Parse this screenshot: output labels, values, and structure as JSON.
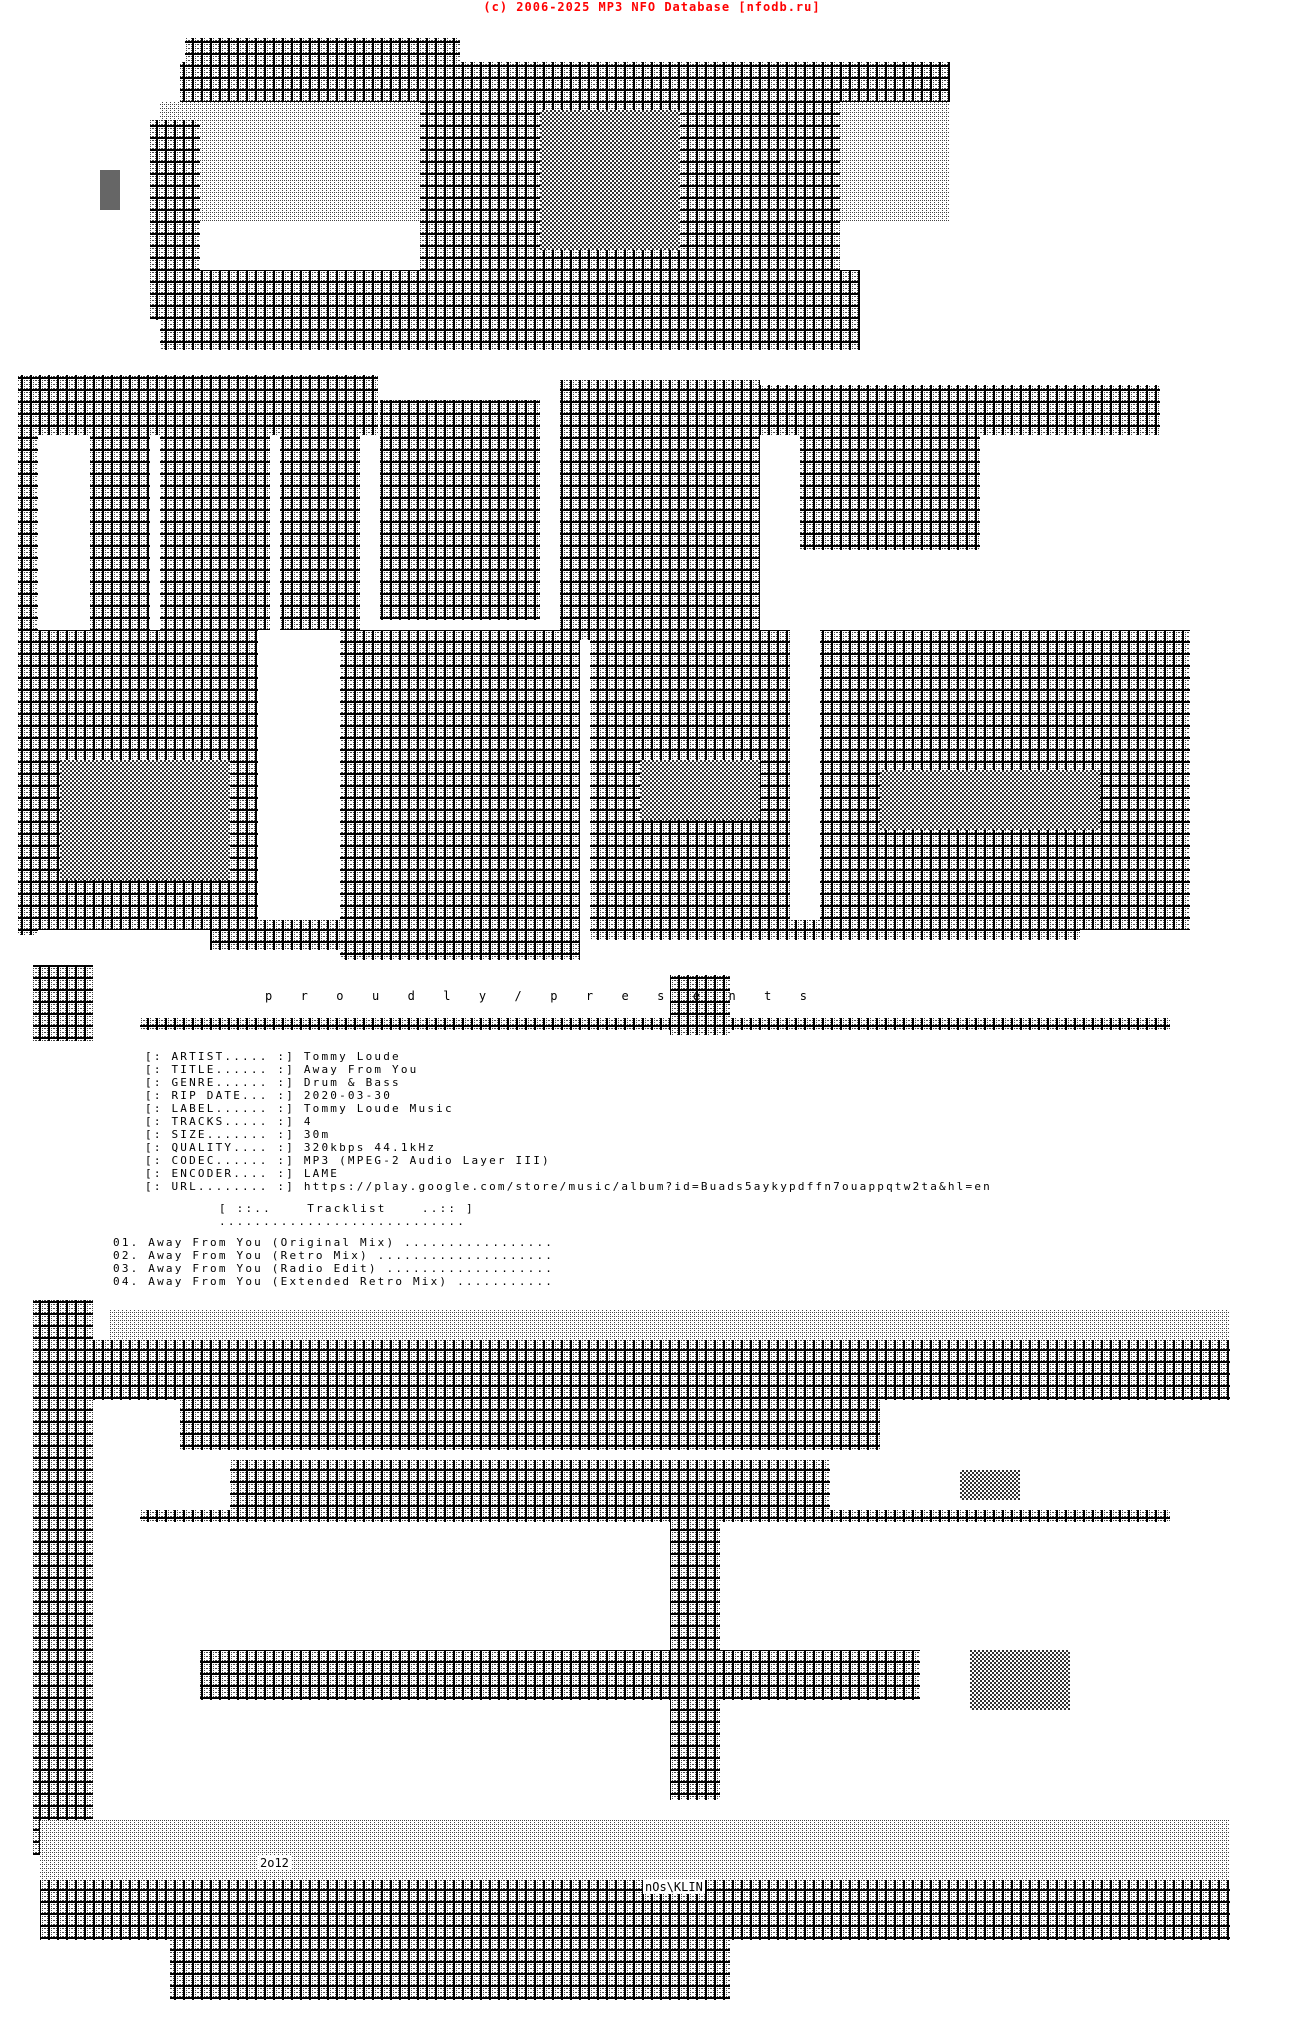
{
  "credit": "(c) 2006-2025 MP3 NFO Database [nfodb.ru]",
  "art": {
    "tagline": "p r o u d l y / p r e s e n t s",
    "year_tag": "2o12",
    "artist_signature": "nOs\\KLIN",
    "colors": {
      "dark": "#555555",
      "mid": "#8a8a8a",
      "light": "#c8c8c8"
    }
  },
  "info": [
    {
      "label": "[: ARTIST..... :]",
      "value": "Tommy Loude"
    },
    {
      "label": "[: TITLE...... :]",
      "value": "Away From You"
    },
    {
      "label": "[: GENRE...... :]",
      "value": "Drum & Bass"
    },
    {
      "label": "[: RIP DATE... :]",
      "value": "2020-03-30"
    },
    {
      "label": "[: LABEL...... :]",
      "value": "Tommy Loude Music"
    },
    {
      "label": "[: TRACKS..... :]",
      "value": "4"
    },
    {
      "label": "[: SIZE....... :]",
      "value": "30m"
    },
    {
      "label": "[: QUALITY.... :]",
      "value": "320kbps 44.1kHz"
    },
    {
      "label": "[: CODEC...... :]",
      "value": "MP3 (MPEG-2 Audio Layer III)"
    },
    {
      "label": "[: ENCODER.... :]",
      "value": "LAME"
    },
    {
      "label": "[: URL........ :]",
      "value": "https://play.google.com/store/music/album?id=Buads5aykypdffn7ouappqtw2ta&hl=en"
    }
  ],
  "tracklist": {
    "header": "[ ::..    Tracklist    ..:: ]",
    "underline": "............................",
    "tracks": [
      "01. Away From You (Original Mix) .................",
      "02. Away From You (Retro Mix) ....................",
      "03. Away From You (Radio Edit) ...................",
      "04. Away From You (Extended Retro Mix) ..........."
    ]
  }
}
